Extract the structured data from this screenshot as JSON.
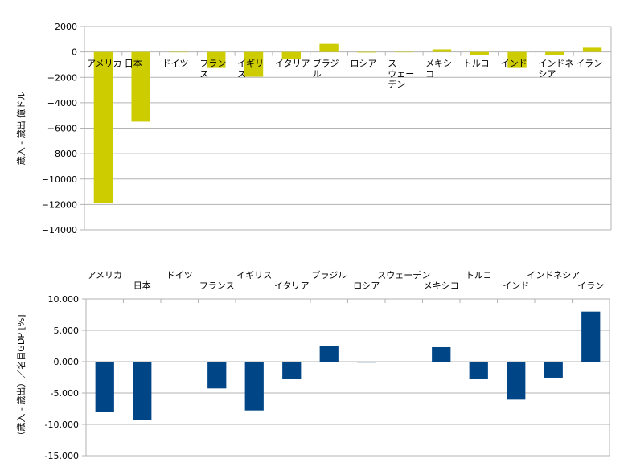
{
  "chart_data": [
    {
      "type": "bar",
      "title": "",
      "xlabel": "",
      "ylabel": "歳入 - 歳出 億ドル",
      "ylim": [
        -14000,
        2000
      ],
      "yticks": [
        2000,
        0,
        -2000,
        -4000,
        -6000,
        -8000,
        -10000,
        -12000,
        -14000
      ],
      "ytick_labels": [
        "2000",
        "0",
        "−2000",
        "−4000",
        "−6000",
        "−8000",
        "−10000",
        "−12000",
        "−14000"
      ],
      "grid": true,
      "color": "#cccc00",
      "categories": [
        "アメリカ",
        "日本",
        "ドイツ",
        "フランス",
        "イギリス",
        "イタリア",
        "ブラジル",
        "ロシア",
        "スウェーデン",
        "メキシコ",
        "トルコ",
        "インド",
        "インドネシア",
        "イラン"
      ],
      "category_lines": [
        [
          "アメリカ"
        ],
        [
          "日本"
        ],
        [
          "ドイツ"
        ],
        [
          "フラン",
          "ス"
        ],
        [
          "イギリ",
          "ス"
        ],
        [
          "イタリア"
        ],
        [
          "ブラジ",
          "ル"
        ],
        [
          "ロシア"
        ],
        [
          "ス",
          "ウェー",
          "デン"
        ],
        [
          "メキシ",
          "コ"
        ],
        [
          "トルコ"
        ],
        [
          "インド"
        ],
        [
          "インドネ",
          "シア"
        ],
        [
          "イラン"
        ]
      ],
      "values": [
        -11850,
        -5490,
        0,
        -1200,
        -1950,
        -600,
        630,
        -50,
        0,
        200,
        -250,
        -1200,
        -250,
        330
      ]
    },
    {
      "type": "bar",
      "title": "",
      "xlabel": "",
      "ylabel": "（歳入 - 歳出）／名目GDP [%]",
      "ylim": [
        -15,
        10
      ],
      "yticks": [
        10,
        5,
        0,
        -5,
        -10,
        -15
      ],
      "ytick_labels": [
        "10.000",
        "5.000",
        "0.000",
        "-5.000",
        "-10.000",
        "-15.000"
      ],
      "grid": true,
      "color": "#004586",
      "categories": [
        "アメリカ",
        "日本",
        "ドイツ",
        "フランス",
        "イギリス",
        "イタリア",
        "ブラジル",
        "ロシア",
        "スウェーデン",
        "メキシコ",
        "トルコ",
        "インド",
        "インドネシア",
        "イラン"
      ],
      "values": [
        -8.0,
        -9.35,
        0,
        -4.27,
        -7.78,
        -2.69,
        2.56,
        -0.15,
        0,
        2.31,
        -2.69,
        -6.07,
        -2.56,
        7.99
      ]
    }
  ]
}
